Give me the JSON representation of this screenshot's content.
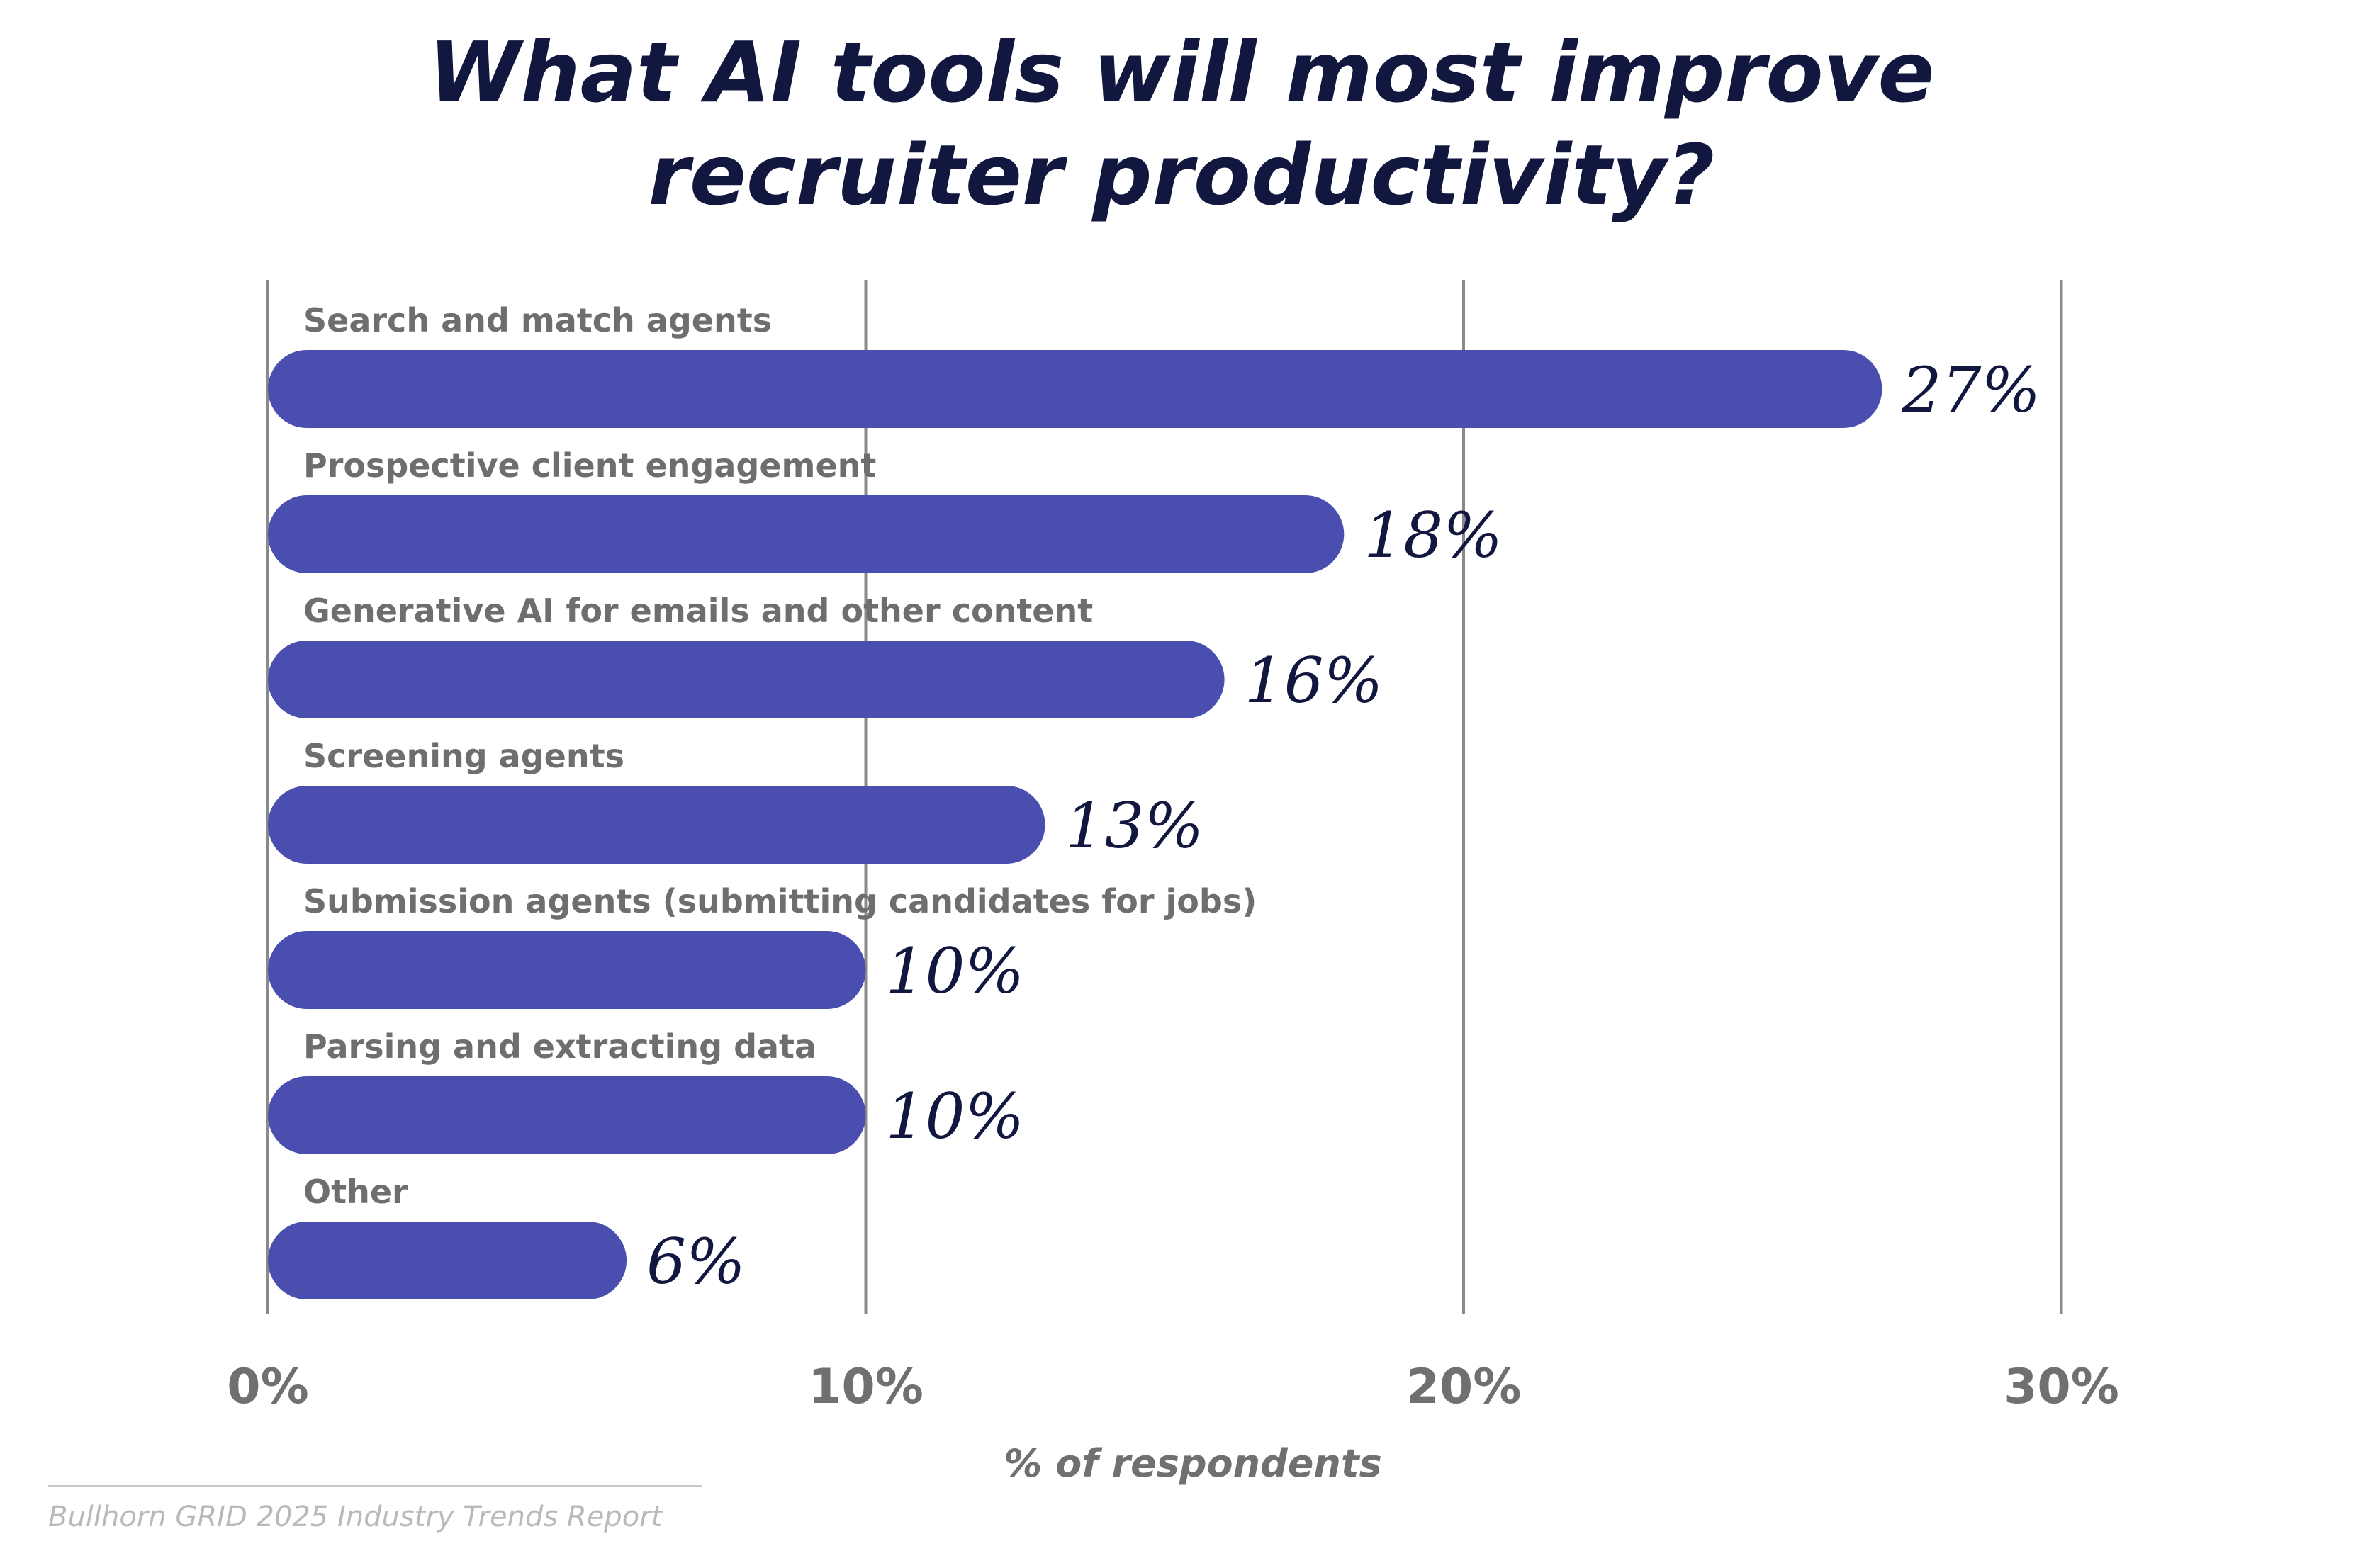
{
  "title_lines": [
    "What AI tools will most improve",
    "recruiter productivity?"
  ],
  "source": "Bullhorn GRID 2025 Industry Trends Report",
  "colors": {
    "bar": "#4a4faf",
    "title": "#11173e",
    "category_label": "#6e6e6e",
    "value_label": "#11173e",
    "grid": "#8a8a8a",
    "tick_label": "#707070"
  },
  "chart_data": {
    "type": "bar",
    "orientation": "horizontal",
    "title": "What AI tools will most improve recruiter productivity?",
    "xlabel": "% of respondents",
    "ylabel": "",
    "xlim": [
      0,
      30
    ],
    "grid": true,
    "x_ticks": [
      0,
      10,
      20,
      30
    ],
    "x_tick_labels": [
      "0%",
      "10%",
      "20%",
      "30%"
    ],
    "categories": [
      "Search and match agents",
      "Prospective client engagement",
      "Generative AI for emails and other content",
      "Screening agents",
      "Submission agents (submitting candidates for jobs)",
      "Parsing and extracting data",
      "Other"
    ],
    "values": [
      27,
      18,
      16,
      13,
      10,
      10,
      6
    ],
    "value_labels": [
      "27%",
      "18%",
      "16%",
      "13%",
      "10%",
      "10%",
      "6%"
    ]
  }
}
